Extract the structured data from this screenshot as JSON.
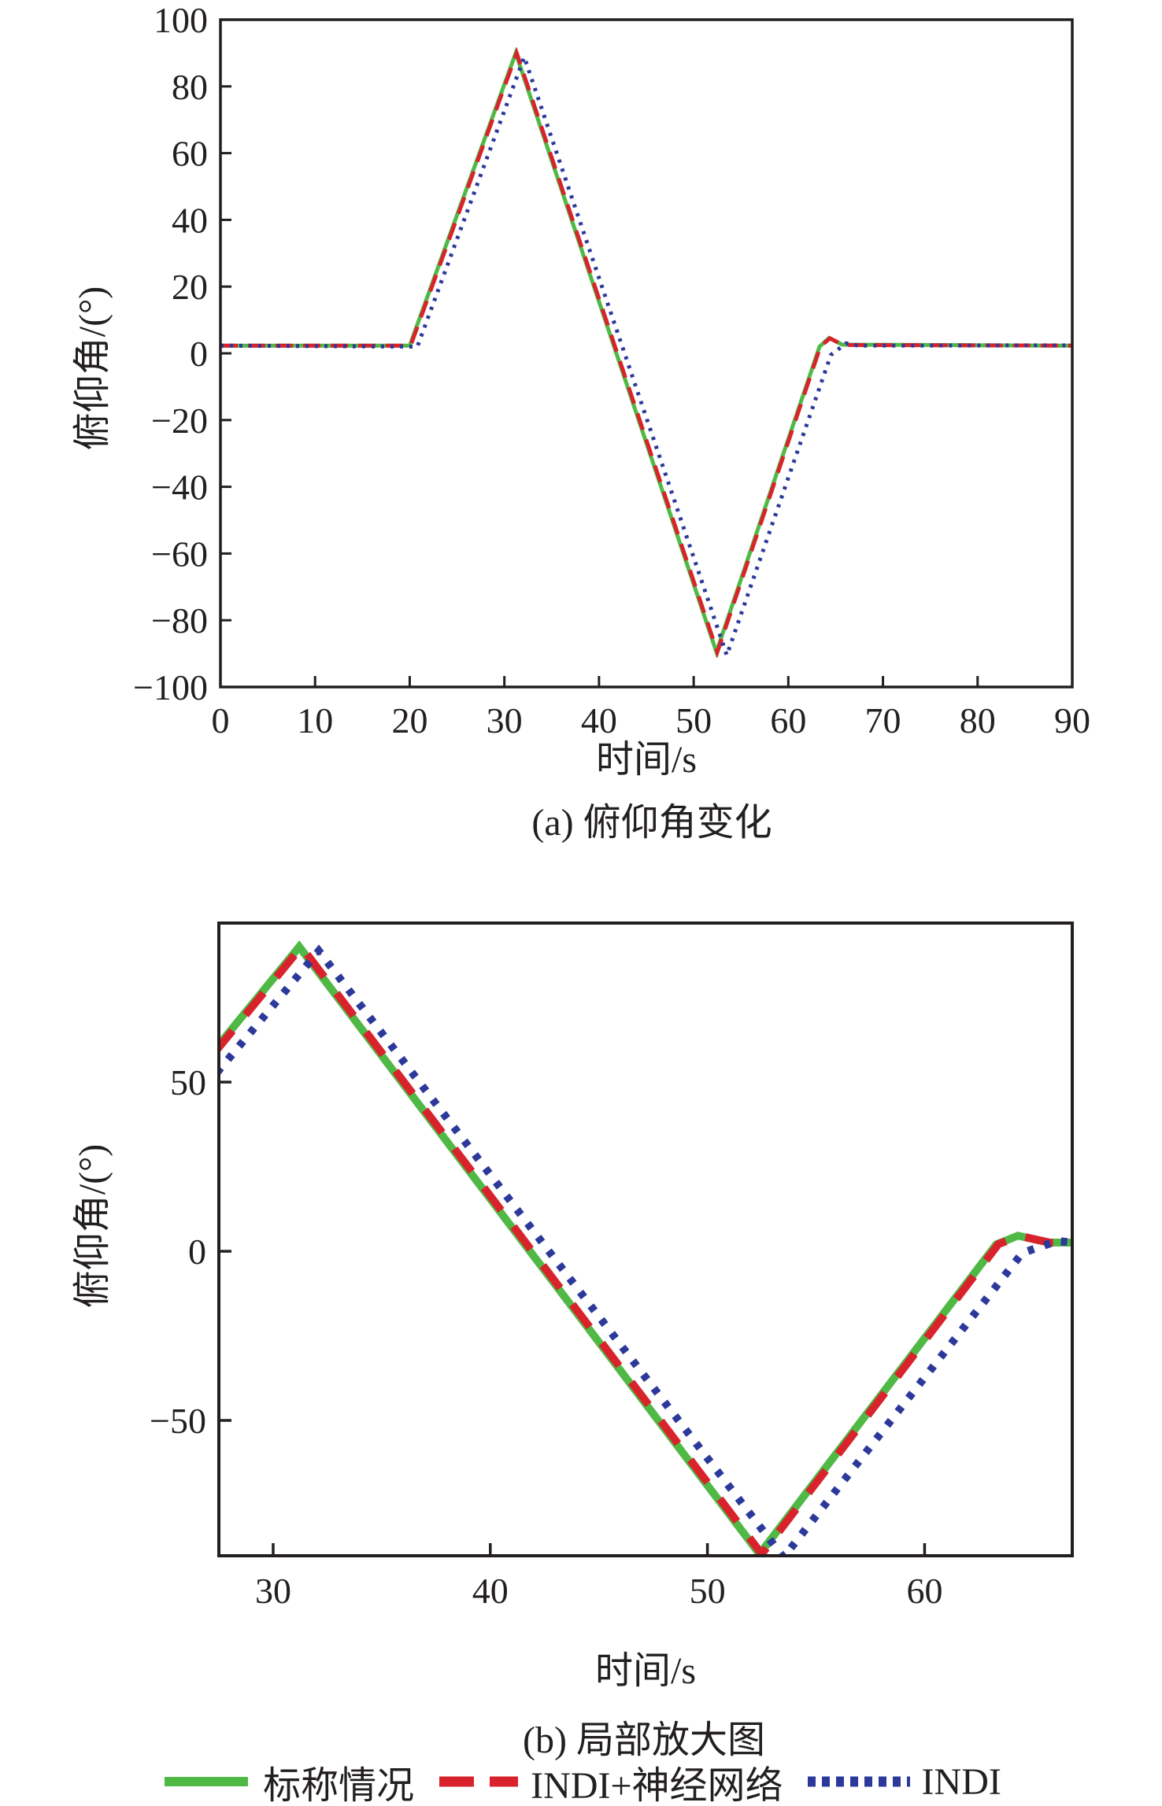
{
  "figure": {
    "background": "#ffffff",
    "axis_color": "#231f20"
  },
  "chart_data": {
    "type": "line",
    "series": [
      {
        "name": "标称情况",
        "style": "solid",
        "color": "#50B946",
        "points": [
          [
            0,
            2.3
          ],
          [
            20,
            2.3
          ],
          [
            31.2,
            90
          ],
          [
            52.4,
            -89.5
          ],
          [
            63.3,
            2.0
          ],
          [
            64.3,
            4.6
          ],
          [
            65.7,
            2.6
          ],
          [
            90,
            2.3
          ]
        ]
      },
      {
        "name": "INDI+神经网络",
        "style": "dashed",
        "color": "#D9232C",
        "points": [
          [
            0,
            2.3
          ],
          [
            20.1,
            2.3
          ],
          [
            31.3,
            90
          ],
          [
            52.5,
            -89.5
          ],
          [
            63.4,
            2.1
          ],
          [
            64.4,
            4.5
          ],
          [
            65.8,
            2.5
          ],
          [
            90,
            2.3
          ]
        ]
      },
      {
        "name": "INDI",
        "style": "dotted",
        "color": "#2C399B",
        "points": [
          [
            0,
            2.3
          ],
          [
            20.8,
            2.0
          ],
          [
            32.1,
            88.8
          ],
          [
            53.5,
            -90.5
          ],
          [
            64.5,
            -0.5
          ],
          [
            66.1,
            3.0
          ],
          [
            67.4,
            2.3
          ],
          [
            90,
            2.4
          ]
        ]
      }
    ],
    "charts": [
      {
        "caption": "(a) 俯仰角变化",
        "xlabel": "时间/s",
        "ylabel": "俯仰角/(°)",
        "xlim": [
          0,
          90
        ],
        "ylim": [
          -100,
          100
        ],
        "xticks": [
          0,
          10,
          20,
          30,
          40,
          50,
          60,
          70,
          80,
          90
        ],
        "yticks": [
          100,
          80,
          60,
          40,
          20,
          0,
          -20,
          -40,
          -60,
          -80,
          -100
        ],
        "grid": false
      },
      {
        "caption": "(b) 局部放大图",
        "xlabel": "时间/s",
        "ylabel": "俯仰角/(°)",
        "xlim": [
          27.5,
          66.8
        ],
        "ylim": [
          -90,
          97
        ],
        "xticks": [
          30,
          40,
          50,
          60
        ],
        "yticks": [
          50,
          0,
          -50
        ],
        "grid": false
      }
    ],
    "legend_position": "bottom"
  }
}
